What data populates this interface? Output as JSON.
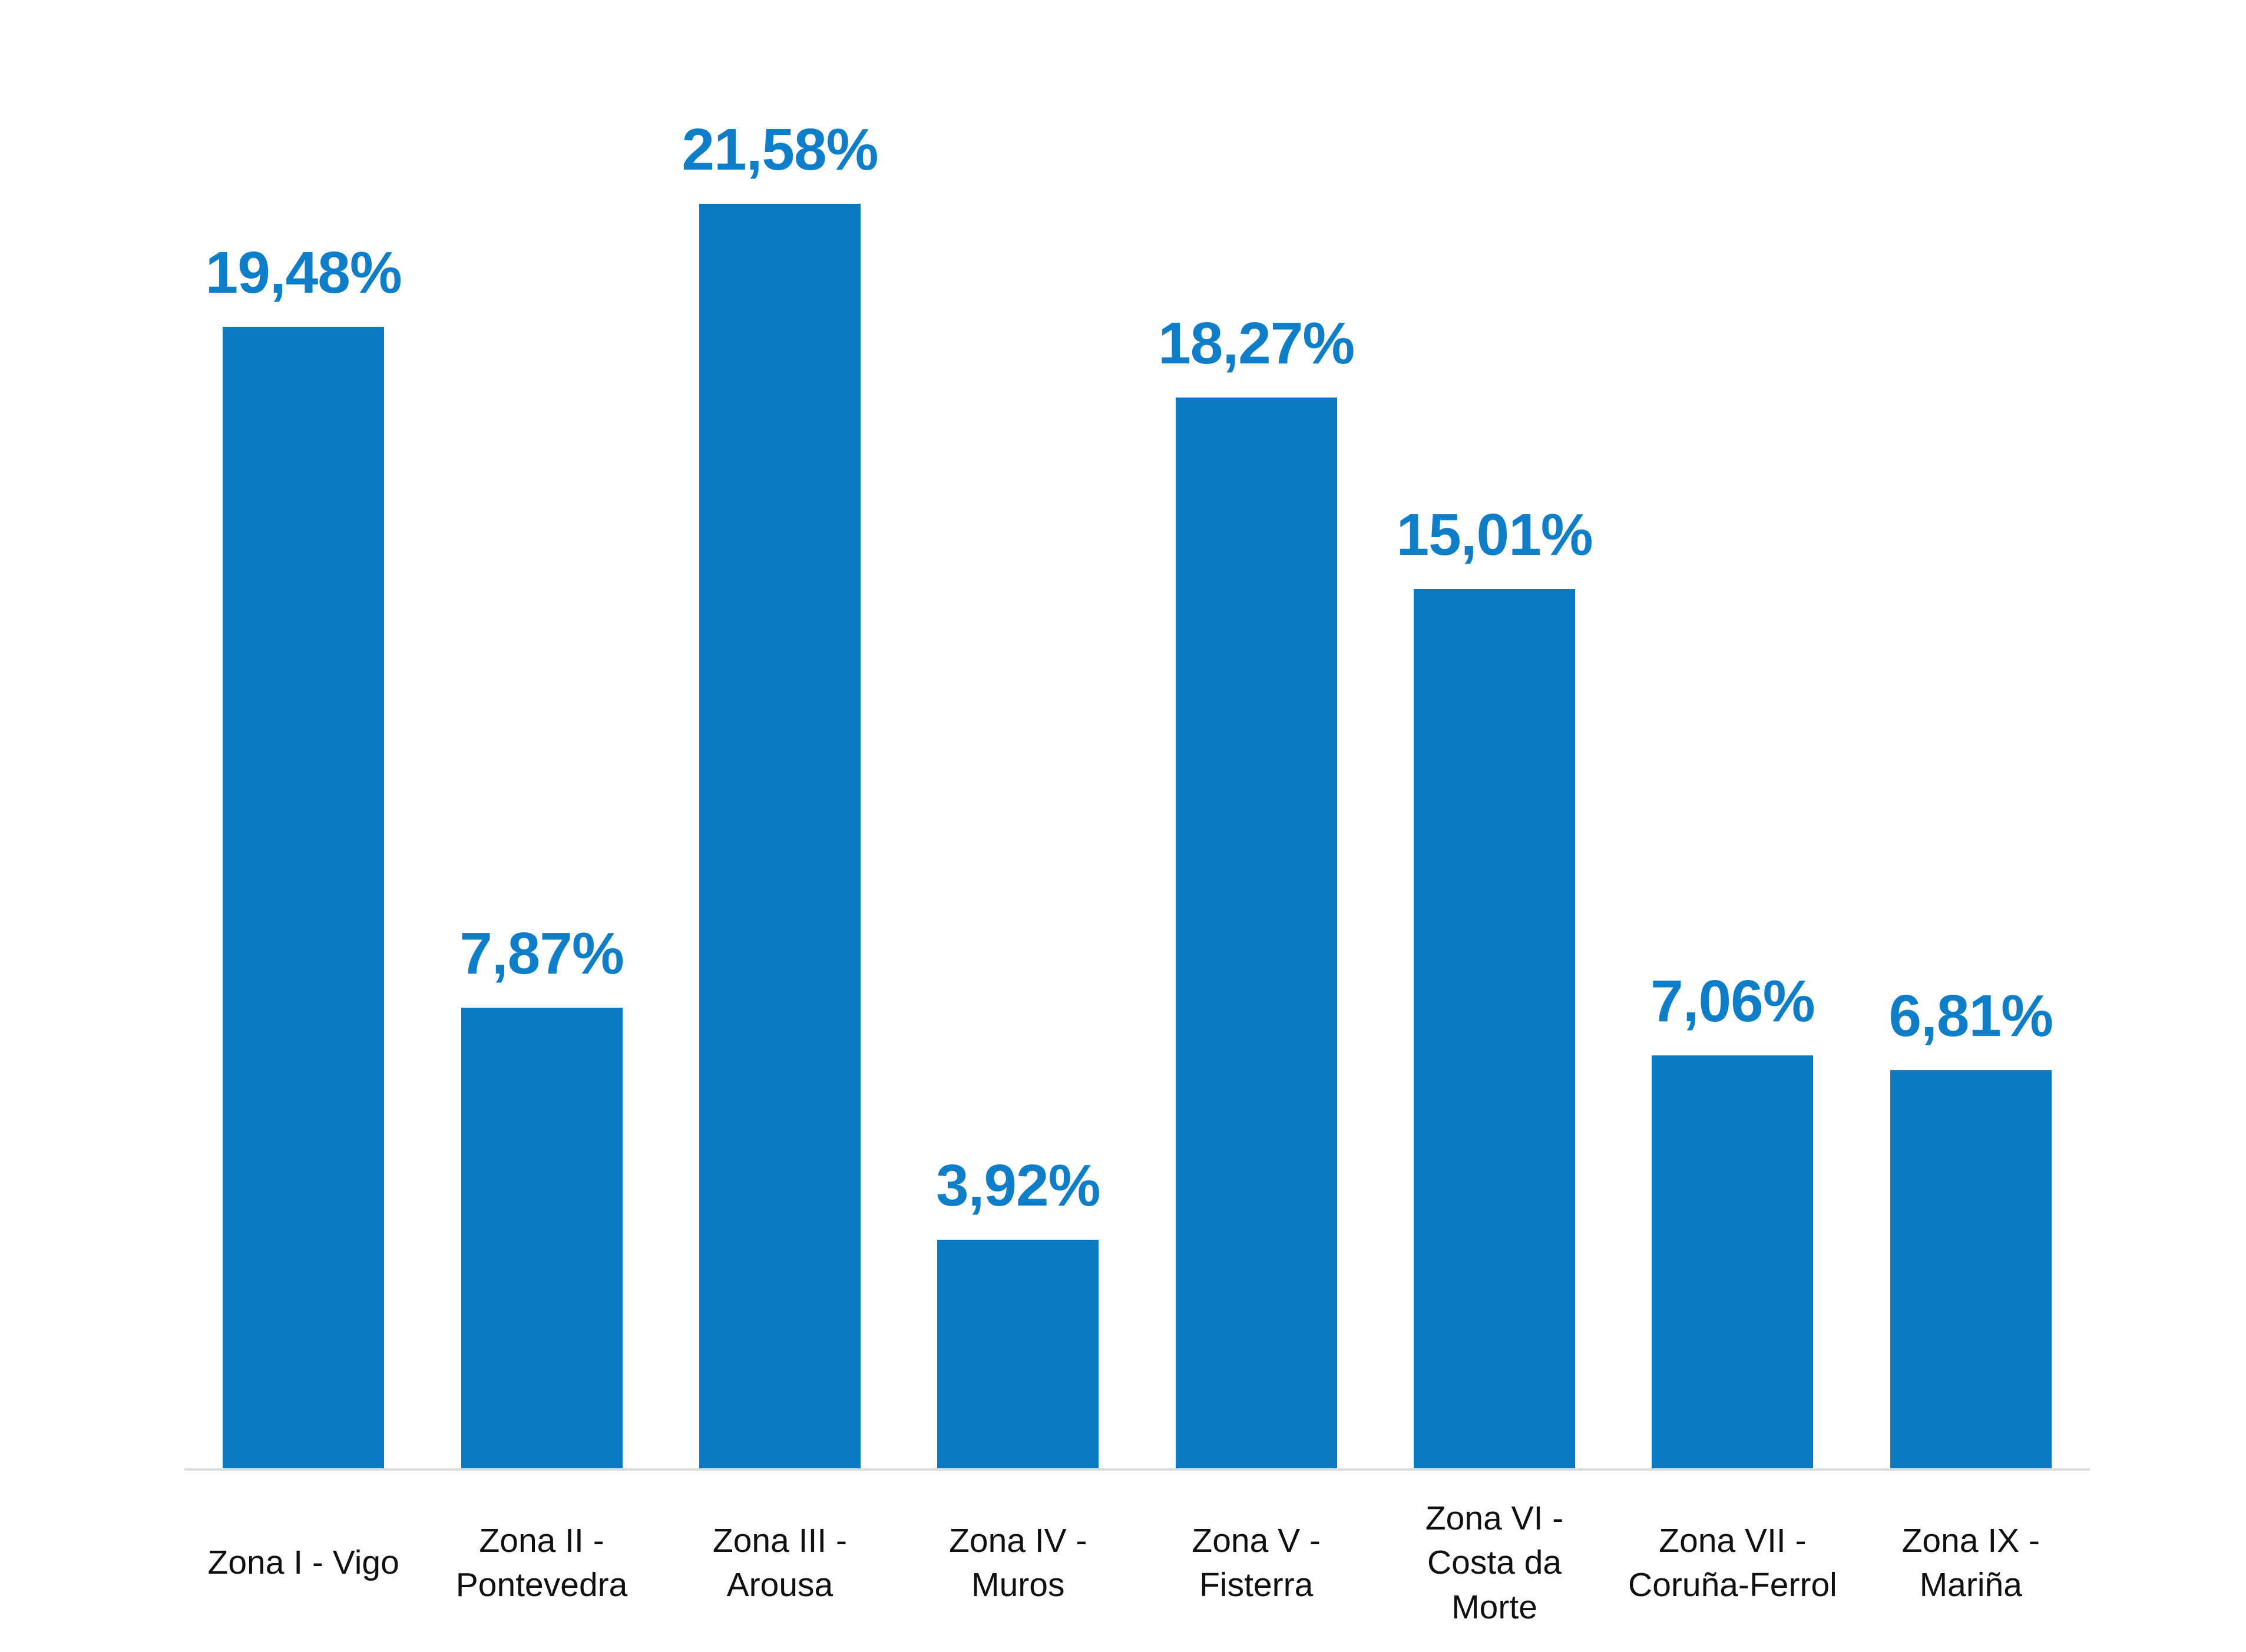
{
  "chart_data": {
    "type": "bar",
    "title": "",
    "xlabel": "",
    "ylabel": "",
    "categories": [
      "Zona I - Vigo",
      "Zona II - Pontevedra",
      "Zona III - Arousa",
      "Zona IV - Muros",
      "Zona V - Fisterra",
      "Zona VI - Costa da Morte",
      "Zona VII - Coruña-Ferrol",
      "Zona IX - Mariña"
    ],
    "category_lines": [
      [
        "Zona I - Vigo"
      ],
      [
        "Zona II -",
        "Pontevedra"
      ],
      [
        "Zona III -",
        "Arousa"
      ],
      [
        "Zona IV -",
        "Muros"
      ],
      [
        "Zona V -",
        "Fisterra"
      ],
      [
        "Zona VI -",
        "Costa da",
        "Morte"
      ],
      [
        "Zona VII -",
        "Coruña-Ferrol"
      ],
      [
        "Zona IX -",
        "Mariña"
      ]
    ],
    "values": [
      19.48,
      7.87,
      21.58,
      3.92,
      18.27,
      15.01,
      7.06,
      6.81
    ],
    "value_labels": [
      "19,48%",
      "7,87%",
      "21,58%",
      "3,92%",
      "18,27%",
      "15,01%",
      "7,06%",
      "6,81%"
    ],
    "ylim": [
      0,
      25
    ],
    "grid": false,
    "legend": false,
    "bar_color": "#0b79c2",
    "value_label_color": "#0f7ec9",
    "category_label_color": "#101010",
    "axis_line_color": "#dcdcdc",
    "background_color": "#ffffff"
  }
}
